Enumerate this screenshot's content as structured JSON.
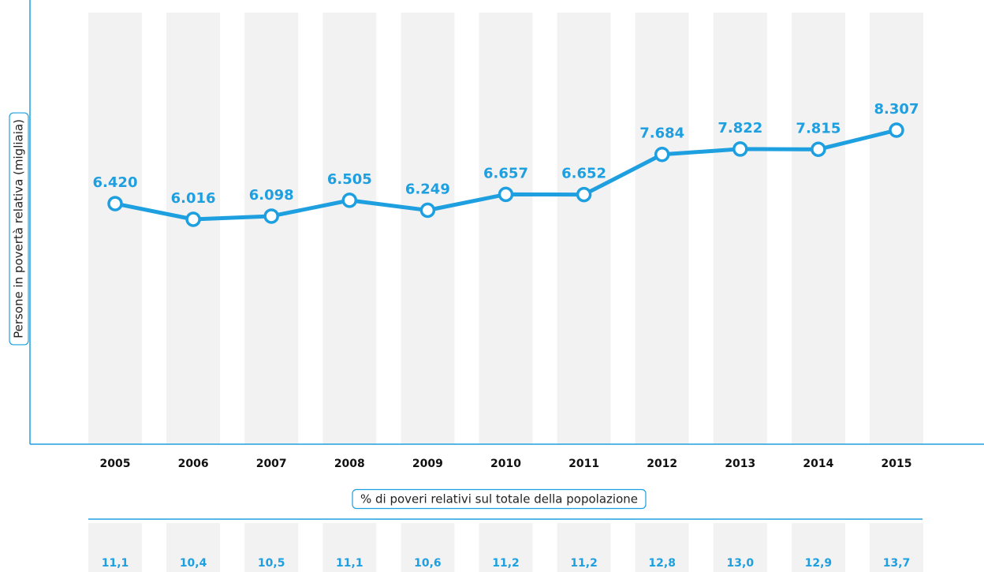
{
  "chart_data": {
    "type": "line",
    "y_label": "Persone in povertà relativa (migliaia)",
    "categories": [
      "2005",
      "2006",
      "2007",
      "2008",
      "2009",
      "2010",
      "2011",
      "2012",
      "2013",
      "2014",
      "2015"
    ],
    "values": [
      6420,
      6016,
      6098,
      6505,
      6249,
      6657,
      6652,
      7684,
      7822,
      7815,
      8307
    ],
    "value_labels": [
      "6.420",
      "6.016",
      "6.098",
      "6.505",
      "6.249",
      "6.657",
      "6.652",
      "7.684",
      "7.822",
      "7.815",
      "8.307"
    ],
    "color": "#1e9fe0",
    "percent_row": {
      "label": "% di poveri relativi sul totale della popolazione",
      "values": [
        11.1,
        10.4,
        10.5,
        11.1,
        10.6,
        11.2,
        11.2,
        12.8,
        13.0,
        12.9,
        13.7
      ],
      "value_labels": [
        "11,1",
        "10,4",
        "10,5",
        "11,1",
        "10,6",
        "11,2",
        "11,2",
        "12,8",
        "13,0",
        "12,9",
        "13,7"
      ]
    }
  }
}
